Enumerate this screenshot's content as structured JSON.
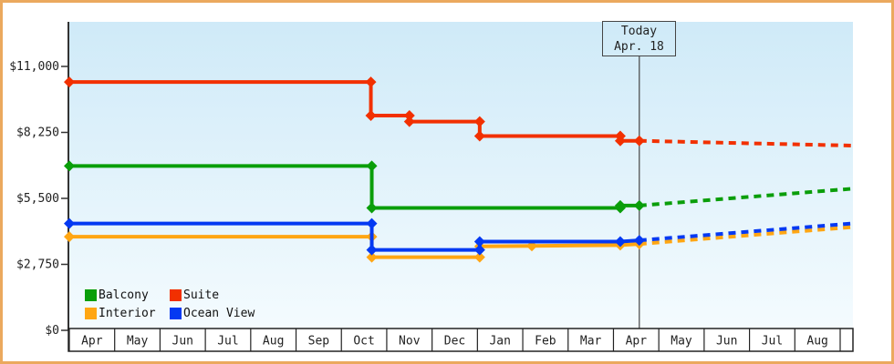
{
  "frame": {
    "border_color": "#eba95e",
    "background": "#ffffff"
  },
  "today_marker": {
    "line1": "Today",
    "line2": "Apr. 18"
  },
  "legend": [
    {
      "label": "Balcony",
      "color": "#0a9e0a"
    },
    {
      "label": "Suite",
      "color": "#f23000"
    },
    {
      "label": "Interior",
      "color": "#ffa613"
    },
    {
      "label": "Ocean View",
      "color": "#0439f2"
    }
  ],
  "chart_data": {
    "type": "line",
    "subtype": "step-price-history-with-dotted-forecast",
    "title": "",
    "xlabel": "",
    "ylabel": "",
    "grid": false,
    "legend_position": "inside-bottom-left",
    "x_axis": {
      "months": [
        "Apr",
        "May",
        "Jun",
        "Jul",
        "Aug",
        "Sep",
        "Oct",
        "Nov",
        "Dec",
        "Jan",
        "Feb",
        "Mar",
        "Apr",
        "May",
        "Jun",
        "Jul",
        "Aug"
      ],
      "extent_months": 17.25,
      "today_month_offset": 12.57,
      "today_date_label": "Apr. 18"
    },
    "y_axis": {
      "ticks": [
        {
          "label": "$0",
          "value": 0
        },
        {
          "label": "$2,750",
          "value": 2750
        },
        {
          "label": "$5,500",
          "value": 5500
        },
        {
          "label": "$8,250",
          "value": 8250
        },
        {
          "label": "$11,000",
          "value": 11000
        }
      ],
      "min": 0,
      "max": 11000
    },
    "colors": {
      "plot_bg_top": "#cfeaf8",
      "plot_bg_bottom": "#f4fbfe",
      "axis": "#333333",
      "band_line": "#222222",
      "today_line": "#444444",
      "text": "#222222"
    },
    "series": [
      {
        "name": "Interior",
        "color": "#ffa613",
        "solid": [
          [
            0,
            3900
          ],
          [
            6.67,
            3900
          ],
          [
            6.67,
            3050
          ],
          [
            9.05,
            3050
          ],
          [
            9.05,
            3500
          ],
          [
            10.2,
            3520
          ],
          [
            12.15,
            3550
          ],
          [
            12.57,
            3600
          ]
        ],
        "forecast": [
          [
            12.57,
            3600
          ],
          [
            17.25,
            4300
          ]
        ]
      },
      {
        "name": "Ocean View",
        "color": "#0439f2",
        "solid": [
          [
            0,
            4450
          ],
          [
            6.67,
            4450
          ],
          [
            6.67,
            3350
          ],
          [
            9.05,
            3350
          ],
          [
            9.05,
            3700
          ],
          [
            12.15,
            3700
          ],
          [
            12.57,
            3750
          ]
        ],
        "forecast": [
          [
            12.57,
            3750
          ],
          [
            17.25,
            4450
          ]
        ]
      },
      {
        "name": "Balcony",
        "color": "#0a9e0a",
        "solid": [
          [
            0,
            6850
          ],
          [
            6.67,
            6850
          ],
          [
            6.67,
            5100
          ],
          [
            12.15,
            5100
          ],
          [
            12.15,
            5200
          ],
          [
            12.57,
            5200
          ]
        ],
        "forecast": [
          [
            12.57,
            5200
          ],
          [
            17.25,
            5900
          ]
        ]
      },
      {
        "name": "Suite",
        "color": "#f23000",
        "solid": [
          [
            0,
            10350
          ],
          [
            6.65,
            10350
          ],
          [
            6.65,
            8950
          ],
          [
            7.5,
            8950
          ],
          [
            7.5,
            8700
          ],
          [
            9.05,
            8700
          ],
          [
            9.05,
            8100
          ],
          [
            12.15,
            8100
          ],
          [
            12.15,
            7900
          ],
          [
            12.57,
            7900
          ]
        ],
        "forecast": [
          [
            12.57,
            7900
          ],
          [
            17.25,
            7700
          ]
        ]
      }
    ]
  }
}
